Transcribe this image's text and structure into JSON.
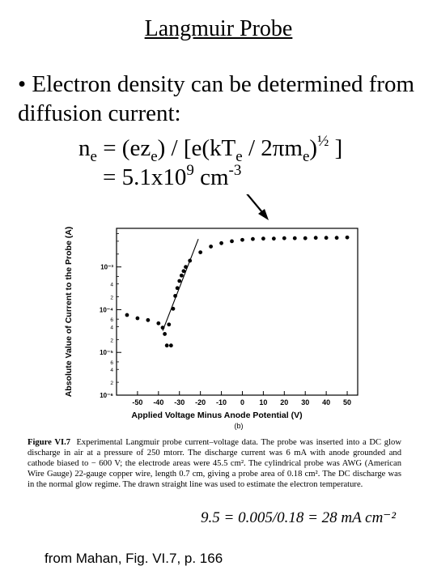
{
  "slide": {
    "title": "Langmuir Probe",
    "bullet_marker": "•",
    "bullet_text": "Electron density can be determined from diffusion current:",
    "equation": {
      "lhs": "n",
      "lhs_sub": "e",
      "eq_open": " = (ez",
      "sub_e1": "e",
      "mid1": ") / [e(kT",
      "sub_e2": "e",
      "mid2": " / 2πm",
      "sub_e3": "e",
      "close": ")",
      "half": "½",
      "end": " ]"
    },
    "result": {
      "prefix": "= 5.1x10",
      "exp": "9",
      "unit": " cm",
      "unit_exp": "-3"
    },
    "credit": "from Mahan, Fig. VI.7, p. 166"
  },
  "figure": {
    "panel_label": "(b)",
    "caption_label": "Figure VI.7",
    "caption_text": "Experimental Langmuir probe current–voltage data. The probe was inserted into a DC glow discharge in air at a pressure of 250 mtorr. The discharge current was 6 mA with anode grounded and cathode biased to − 600 V; the electrode areas were 45.5 cm². The cylindrical probe was AWG (American Wire Gauge) 22-gauge copper wire, length 0.7 cm, giving a probe area of 0.18 cm². The DC discharge was in the normal glow regime. The drawn straight line was used to estimate the electron temperature.",
    "handwriting": "9.5 = 0.005/0.18 = 28 mA cm⁻²"
  },
  "chart_data": {
    "type": "scatter",
    "xlabel": "Applied Voltage Minus Anode Potential (V)",
    "ylabel": "Absolute Value of Current to the Probe (A)",
    "xlim": [
      -60,
      55
    ],
    "x_ticks": [
      -50,
      -40,
      -30,
      -20,
      -10,
      0,
      10,
      20,
      30,
      40,
      50
    ],
    "y_log": true,
    "ylim": [
      1e-06,
      0.008
    ],
    "y_tick_labels": [
      "10⁻⁵",
      "10⁻⁴",
      "10⁻³"
    ],
    "y_minor_labels": [
      "2",
      "4",
      "6",
      "2",
      "4",
      "6",
      "2",
      "4"
    ],
    "grid": false,
    "points": [
      {
        "x": -55,
        "y": 7.5e-05
      },
      {
        "x": -50,
        "y": 6.3e-05
      },
      {
        "x": -45,
        "y": 5.7e-05
      },
      {
        "x": -40,
        "y": 4.8e-05
      },
      {
        "x": -38,
        "y": 3.8e-05
      },
      {
        "x": -37,
        "y": 2.7e-05
      },
      {
        "x": -36,
        "y": 1.45e-05
      },
      {
        "x": -34,
        "y": 1.45e-05
      },
      {
        "x": -35,
        "y": 4.5e-05
      },
      {
        "x": -33,
        "y": 0.000105
      },
      {
        "x": -32,
        "y": 0.00021
      },
      {
        "x": -31,
        "y": 0.00032
      },
      {
        "x": -30,
        "y": 0.00047
      },
      {
        "x": -29,
        "y": 0.00063
      },
      {
        "x": -28,
        "y": 0.0008
      },
      {
        "x": -27,
        "y": 0.001
      },
      {
        "x": -25,
        "y": 0.0014
      },
      {
        "x": -20,
        "y": 0.0022
      },
      {
        "x": -15,
        "y": 0.003
      },
      {
        "x": -10,
        "y": 0.0036
      },
      {
        "x": -5,
        "y": 0.004
      },
      {
        "x": 0,
        "y": 0.0043
      },
      {
        "x": 5,
        "y": 0.0045
      },
      {
        "x": 10,
        "y": 0.0046
      },
      {
        "x": 15,
        "y": 0.0046
      },
      {
        "x": 20,
        "y": 0.0047
      },
      {
        "x": 25,
        "y": 0.0047
      },
      {
        "x": 30,
        "y": 0.0047
      },
      {
        "x": 35,
        "y": 0.0048
      },
      {
        "x": 40,
        "y": 0.0048
      },
      {
        "x": 45,
        "y": 0.0048
      },
      {
        "x": 50,
        "y": 0.0049
      }
    ],
    "fit_line": [
      {
        "x": -38,
        "y": 3.2e-05
      },
      {
        "x": -21,
        "y": 0.0045
      }
    ]
  }
}
